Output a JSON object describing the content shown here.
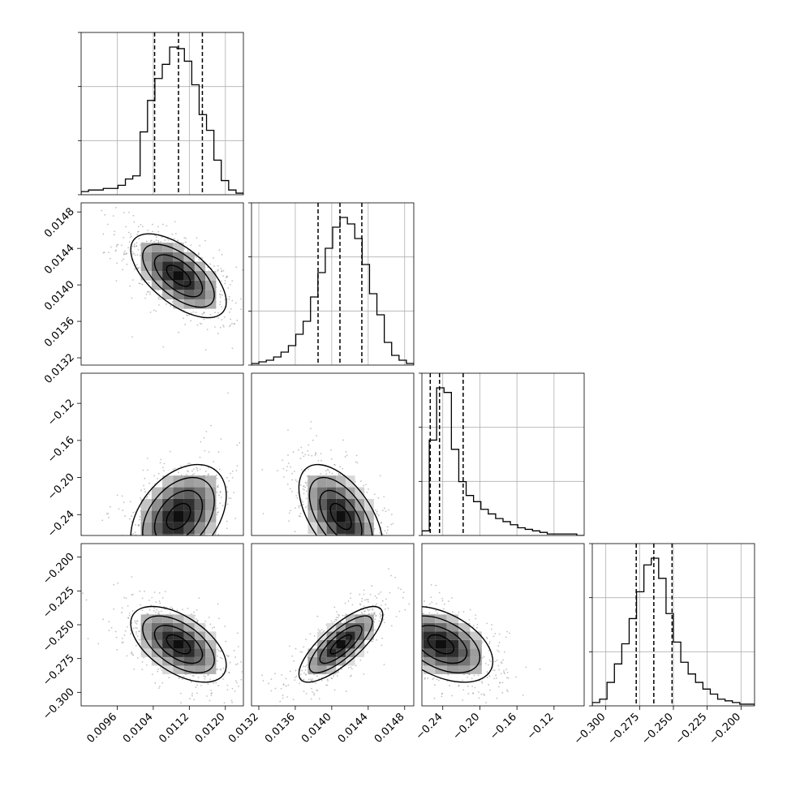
{
  "chart_data": {
    "type": "corner",
    "grid": true,
    "variables": [
      {
        "ticks": [
          0.0096,
          0.0104,
          0.0112,
          0.012
        ],
        "tick_labels": [
          "0.0096",
          "0.0104",
          "0.0112",
          "0.0120"
        ],
        "range": [
          0.0088,
          0.0124
        ]
      },
      {
        "ticks": [
          0.0132,
          0.0136,
          0.014,
          0.0144,
          0.0148
        ],
        "tick_labels": [
          "0.0132",
          "0.0136",
          "0.0140",
          "0.0144",
          "0.0148"
        ],
        "range": [
          0.01312,
          0.0149
        ]
      },
      {
        "ticks": [
          -0.24,
          -0.2,
          -0.16,
          -0.12
        ],
        "tick_labels": [
          "−0.24",
          "−0.20",
          "−0.16",
          "−0.12"
        ],
        "range": [
          -0.2625,
          -0.0875
        ]
      },
      {
        "ticks": [
          -0.3,
          -0.275,
          -0.25,
          -0.225,
          -0.2
        ],
        "tick_labels": [
          "−0.300",
          "−0.275",
          "−0.250",
          "−0.225",
          "−0.200"
        ],
        "range": [
          -0.31,
          -0.19
        ]
      }
    ],
    "diagonal": [
      {
        "quantiles": [
          0.01043,
          0.01096,
          0.01149
        ],
        "hist": [
          2,
          3,
          3,
          4,
          4,
          6,
          10,
          12,
          40,
          60,
          74,
          83,
          94,
          93,
          85,
          70,
          51,
          41,
          22,
          9,
          3,
          1
        ]
      },
      {
        "quantiles": [
          0.01385,
          0.01409,
          0.01433
        ],
        "hist": [
          1,
          2,
          3,
          5,
          8,
          12,
          19,
          27,
          42,
          57,
          72,
          85,
          91,
          87,
          78,
          62,
          44,
          31,
          14,
          6,
          3,
          1
        ]
      },
      {
        "quantiles": [
          -0.2535,
          -0.2435,
          -0.218
        ],
        "hist": [
          3,
          62,
          96,
          93,
          56,
          35,
          26,
          22,
          17,
          14,
          11,
          9,
          7,
          5,
          4,
          3,
          2,
          1,
          1,
          1,
          1,
          0
        ]
      },
      {
        "quantiles": [
          -0.2775,
          -0.2645,
          -0.251
        ],
        "hist": [
          2,
          4,
          14,
          25,
          37,
          52,
          68,
          84,
          88,
          76,
          55,
          38,
          26,
          19,
          14,
          10,
          7,
          4,
          3,
          2,
          1,
          1
        ]
      }
    ],
    "pairs": [
      {
        "row": 1,
        "col": 0,
        "mean": [
          0.01096,
          0.0141
        ],
        "sd": [
          0.00053,
          0.00023
        ],
        "rho": -0.62
      },
      {
        "row": 2,
        "col": 0,
        "mean": [
          0.01096,
          -0.242
        ],
        "sd": [
          0.00053,
          0.028
        ],
        "rho": 0.4
      },
      {
        "row": 2,
        "col": 1,
        "mean": [
          0.0141,
          -0.242
        ],
        "sd": [
          0.00023,
          0.028
        ],
        "rho": -0.55
      },
      {
        "row": 3,
        "col": 0,
        "mean": [
          0.01096,
          -0.2645
        ],
        "sd": [
          0.00053,
          0.014
        ],
        "rho": -0.55
      },
      {
        "row": 3,
        "col": 1,
        "mean": [
          0.0141,
          -0.2645
        ],
        "sd": [
          0.00023,
          0.014
        ],
        "rho": 0.78
      },
      {
        "row": 3,
        "col": 2,
        "mean": [
          -0.242,
          -0.2645
        ],
        "sd": [
          0.028,
          0.014
        ],
        "rho": -0.45
      }
    ]
  }
}
